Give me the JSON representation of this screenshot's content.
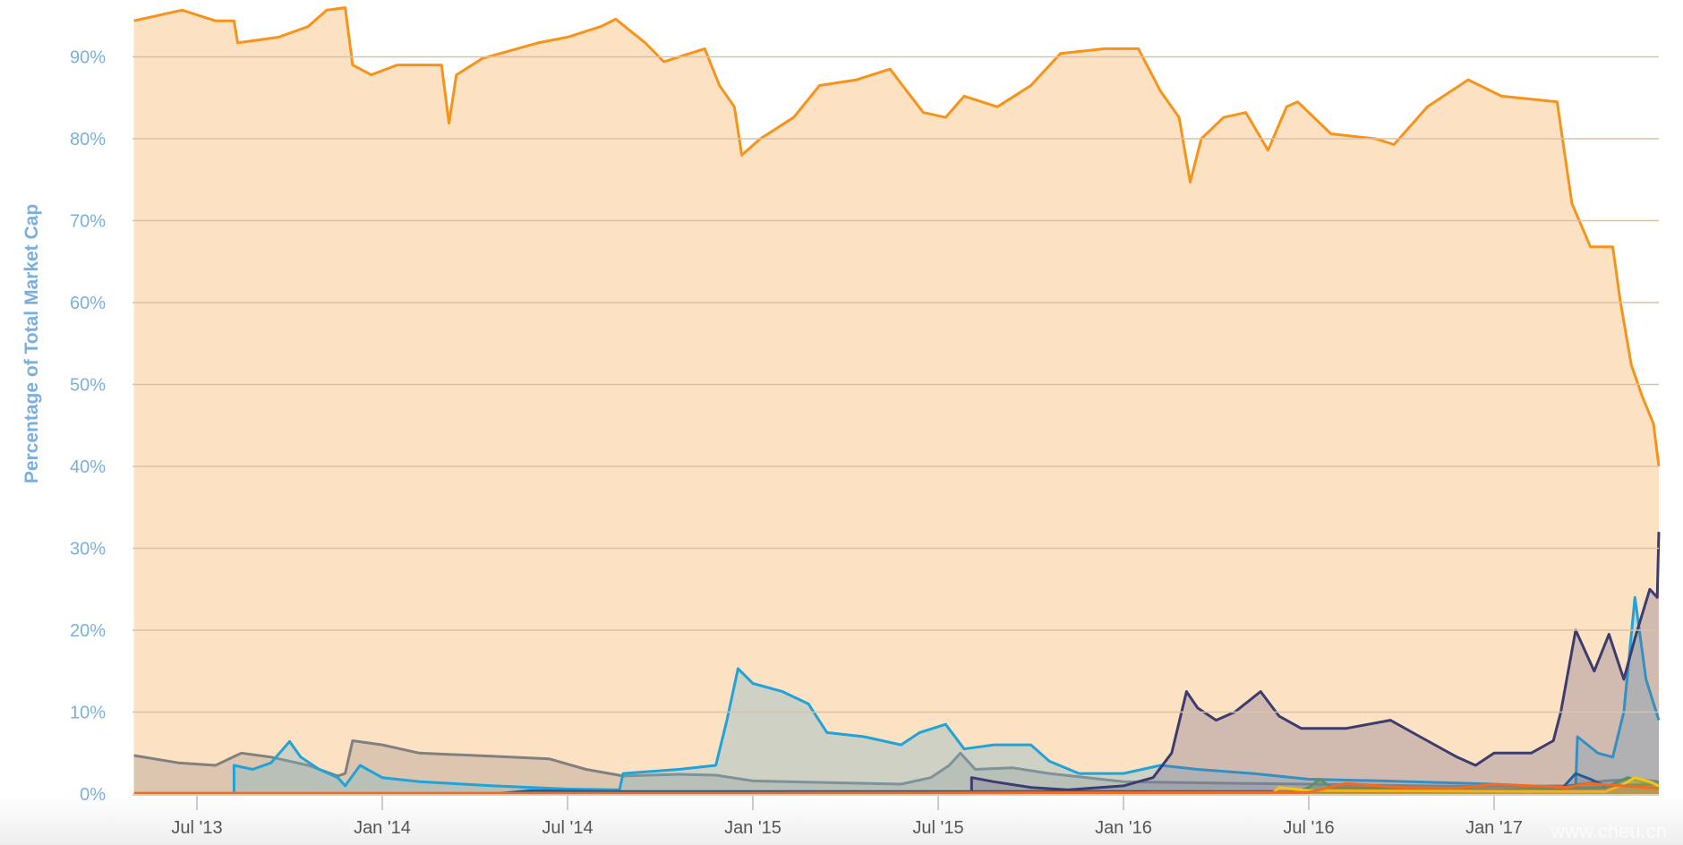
{
  "chart_data": {
    "type": "area",
    "title": "",
    "xlabel": "",
    "ylabel": "Percentage of Total Market Cap",
    "ylim": [
      0,
      100
    ],
    "xlim": [
      2013.33,
      2017.45
    ],
    "grid": true,
    "legend": "none",
    "y_ticks": [
      {
        "value": 0,
        "label": "0%"
      },
      {
        "value": 10,
        "label": "10%"
      },
      {
        "value": 20,
        "label": "20%"
      },
      {
        "value": 30,
        "label": "30%"
      },
      {
        "value": 40,
        "label": "40%"
      },
      {
        "value": 50,
        "label": "50%"
      },
      {
        "value": 60,
        "label": "60%"
      },
      {
        "value": 70,
        "label": "70%"
      },
      {
        "value": 80,
        "label": "80%"
      },
      {
        "value": 90,
        "label": "90%"
      }
    ],
    "x_ticks": [
      {
        "value": 2013.5,
        "label": "Jul '13"
      },
      {
        "value": 2014.0,
        "label": "Jan '14"
      },
      {
        "value": 2014.5,
        "label": "Jul '14"
      },
      {
        "value": 2015.0,
        "label": "Jan '15"
      },
      {
        "value": 2015.5,
        "label": "Jul '15"
      },
      {
        "value": 2016.0,
        "label": "Jan '16"
      },
      {
        "value": 2016.5,
        "label": "Jul '16"
      },
      {
        "value": 2017.0,
        "label": "Jan '17"
      }
    ],
    "series": [
      {
        "color": "#f7931a",
        "fill": "rgba(252,225,194,1)",
        "points": [
          [
            2013.33,
            94.4
          ],
          [
            2013.46,
            95.7
          ],
          [
            2013.55,
            94.4
          ],
          [
            2013.6,
            94.4
          ],
          [
            2013.61,
            91.7
          ],
          [
            2013.72,
            92.4
          ],
          [
            2013.8,
            93.7
          ],
          [
            2013.85,
            95.7
          ],
          [
            2013.9,
            96
          ],
          [
            2013.92,
            89
          ],
          [
            2013.97,
            87.8
          ],
          [
            2014.04,
            89
          ],
          [
            2014.16,
            89
          ],
          [
            2014.18,
            81.9
          ],
          [
            2014.2,
            87.8
          ],
          [
            2014.27,
            89.8
          ],
          [
            2014.42,
            91.7
          ],
          [
            2014.5,
            92.4
          ],
          [
            2014.59,
            93.7
          ],
          [
            2014.63,
            94.6
          ],
          [
            2014.71,
            91.7
          ],
          [
            2014.76,
            89.4
          ],
          [
            2014.87,
            91
          ],
          [
            2014.91,
            86.5
          ],
          [
            2014.95,
            83.9
          ],
          [
            2014.97,
            78
          ],
          [
            2015.02,
            80
          ],
          [
            2015.11,
            82.6
          ],
          [
            2015.18,
            86.5
          ],
          [
            2015.28,
            87.2
          ],
          [
            2015.37,
            88.5
          ],
          [
            2015.46,
            83.2
          ],
          [
            2015.52,
            82.6
          ],
          [
            2015.57,
            85.2
          ],
          [
            2015.66,
            83.9
          ],
          [
            2015.75,
            86.5
          ],
          [
            2015.83,
            90.4
          ],
          [
            2015.95,
            91
          ],
          [
            2016.04,
            91
          ],
          [
            2016.1,
            85.8
          ],
          [
            2016.15,
            82.6
          ],
          [
            2016.18,
            74.7
          ],
          [
            2016.21,
            80
          ],
          [
            2016.27,
            82.6
          ],
          [
            2016.33,
            83.2
          ],
          [
            2016.39,
            78.6
          ],
          [
            2016.44,
            83.9
          ],
          [
            2016.47,
            84.5
          ],
          [
            2016.56,
            80.6
          ],
          [
            2016.68,
            80
          ],
          [
            2016.73,
            79.3
          ],
          [
            2016.82,
            83.9
          ],
          [
            2016.93,
            87.2
          ],
          [
            2017.02,
            85.2
          ],
          [
            2017.17,
            84.5
          ],
          [
            2017.21,
            72.1
          ],
          [
            2017.26,
            66.8
          ],
          [
            2017.32,
            66.8
          ],
          [
            2017.34,
            60.3
          ],
          [
            2017.37,
            52.4
          ],
          [
            2017.4,
            48.5
          ],
          [
            2017.43,
            45.2
          ],
          [
            2017.45,
            40
          ]
        ]
      },
      {
        "color": "#808080",
        "fill": "rgba(160,150,140,0.35)",
        "points": [
          [
            2013.33,
            4.7
          ],
          [
            2013.45,
            3.8
          ],
          [
            2013.55,
            3.5
          ],
          [
            2013.62,
            5
          ],
          [
            2013.7,
            4.5
          ],
          [
            2013.8,
            3.5
          ],
          [
            2013.88,
            2.2
          ],
          [
            2013.9,
            2.5
          ],
          [
            2013.92,
            6.5
          ],
          [
            2014.0,
            6
          ],
          [
            2014.1,
            5
          ],
          [
            2014.3,
            4.6
          ],
          [
            2014.45,
            4.3
          ],
          [
            2014.55,
            3
          ],
          [
            2014.65,
            2.2
          ],
          [
            2014.8,
            2.4
          ],
          [
            2014.9,
            2.3
          ],
          [
            2015.0,
            1.6
          ],
          [
            2015.2,
            1.4
          ],
          [
            2015.4,
            1.2
          ],
          [
            2015.48,
            2
          ],
          [
            2015.53,
            3.5
          ],
          [
            2015.56,
            5
          ],
          [
            2015.6,
            3
          ],
          [
            2015.7,
            3.2
          ],
          [
            2015.8,
            2.5
          ],
          [
            2016.0,
            1.5
          ],
          [
            2016.3,
            1.3
          ],
          [
            2016.5,
            1.2
          ],
          [
            2016.8,
            1
          ],
          [
            2017.0,
            0.9
          ],
          [
            2017.2,
            1
          ],
          [
            2017.3,
            1.6
          ],
          [
            2017.38,
            1.8
          ],
          [
            2017.45,
            1.5
          ]
        ]
      },
      {
        "color": "#1fa3d8",
        "fill": "rgba(120,180,200,0.35)",
        "points": [
          [
            2013.6,
            0
          ],
          [
            2013.6,
            3.5
          ],
          [
            2013.65,
            3
          ],
          [
            2013.7,
            3.8
          ],
          [
            2013.75,
            6.4
          ],
          [
            2013.78,
            4.5
          ],
          [
            2013.83,
            3
          ],
          [
            2013.88,
            2
          ],
          [
            2013.9,
            1
          ],
          [
            2013.94,
            3.5
          ],
          [
            2014.0,
            2
          ],
          [
            2014.1,
            1.5
          ],
          [
            2014.3,
            1
          ],
          [
            2014.5,
            0.6
          ],
          [
            2014.64,
            0.5
          ],
          [
            2014.65,
            2.5
          ],
          [
            2014.8,
            3
          ],
          [
            2014.9,
            3.5
          ],
          [
            2014.93,
            9
          ],
          [
            2014.96,
            15.3
          ],
          [
            2015.0,
            13.5
          ],
          [
            2015.08,
            12.5
          ],
          [
            2015.15,
            11
          ],
          [
            2015.2,
            7.5
          ],
          [
            2015.3,
            7
          ],
          [
            2015.4,
            6
          ],
          [
            2015.45,
            7.5
          ],
          [
            2015.52,
            8.5
          ],
          [
            2015.57,
            5.5
          ],
          [
            2015.65,
            6
          ],
          [
            2015.75,
            6
          ],
          [
            2015.8,
            4
          ],
          [
            2015.88,
            2.5
          ],
          [
            2016.0,
            2.5
          ],
          [
            2016.1,
            3.5
          ],
          [
            2016.2,
            3
          ],
          [
            2016.35,
            2.5
          ],
          [
            2016.5,
            1.8
          ],
          [
            2016.7,
            1.6
          ],
          [
            2017.0,
            1.2
          ],
          [
            2017.15,
            0.8
          ],
          [
            2017.22,
            1
          ],
          [
            2017.225,
            7
          ],
          [
            2017.28,
            5
          ],
          [
            2017.32,
            4.5
          ],
          [
            2017.35,
            10
          ],
          [
            2017.38,
            24
          ],
          [
            2017.41,
            14
          ],
          [
            2017.45,
            9
          ]
        ]
      },
      {
        "color": "#3c3c6e",
        "fill": "rgba(110,100,140,0.3)",
        "points": [
          [
            2015.59,
            0
          ],
          [
            2015.59,
            2
          ],
          [
            2015.65,
            1.5
          ],
          [
            2015.75,
            0.8
          ],
          [
            2015.85,
            0.5
          ],
          [
            2016.0,
            1
          ],
          [
            2016.08,
            2
          ],
          [
            2016.13,
            5
          ],
          [
            2016.17,
            12.5
          ],
          [
            2016.2,
            10.5
          ],
          [
            2016.25,
            9
          ],
          [
            2016.3,
            10
          ],
          [
            2016.37,
            12.5
          ],
          [
            2016.42,
            9.5
          ],
          [
            2016.48,
            8
          ],
          [
            2016.6,
            8
          ],
          [
            2016.72,
            9
          ],
          [
            2016.8,
            7
          ],
          [
            2016.9,
            4.5
          ],
          [
            2016.95,
            3.5
          ],
          [
            2017.0,
            5
          ],
          [
            2017.1,
            5
          ],
          [
            2017.16,
            6.5
          ],
          [
            2017.18,
            10
          ],
          [
            2017.22,
            20
          ],
          [
            2017.27,
            15
          ],
          [
            2017.31,
            19.5
          ],
          [
            2017.35,
            14
          ],
          [
            2017.38,
            19
          ],
          [
            2017.42,
            25
          ],
          [
            2017.44,
            24
          ],
          [
            2017.45,
            32
          ]
        ]
      },
      {
        "color": "#1f5f99",
        "fill": "rgba(40,90,140,0.2)",
        "points": [
          [
            2014.3,
            0
          ],
          [
            2014.4,
            0.4
          ],
          [
            2014.6,
            0.3
          ],
          [
            2015.0,
            0.3
          ],
          [
            2015.5,
            0.3
          ],
          [
            2016.0,
            0.3
          ],
          [
            2016.5,
            0.3
          ],
          [
            2017.0,
            0.3
          ],
          [
            2017.18,
            0.5
          ],
          [
            2017.22,
            2.5
          ],
          [
            2017.26,
            1.8
          ],
          [
            2017.3,
            1
          ],
          [
            2017.45,
            1.2
          ]
        ]
      },
      {
        "color": "#5a8f6a",
        "fill": "rgba(90,143,106,0.4)",
        "points": [
          [
            2016.45,
            0
          ],
          [
            2016.5,
            0.8
          ],
          [
            2016.53,
            1.8
          ],
          [
            2016.56,
            0.8
          ],
          [
            2017.0,
            0.5
          ],
          [
            2017.3,
            0.8
          ],
          [
            2017.36,
            2
          ],
          [
            2017.4,
            1.5
          ],
          [
            2017.45,
            1.2
          ]
        ]
      },
      {
        "color": "#f5c518",
        "fill": "rgba(245,197,24,0.4)",
        "points": [
          [
            2016.4,
            0
          ],
          [
            2016.42,
            0.8
          ],
          [
            2016.5,
            0.4
          ],
          [
            2017.3,
            0.3
          ],
          [
            2017.34,
            1
          ],
          [
            2017.38,
            2
          ],
          [
            2017.42,
            1.5
          ],
          [
            2017.45,
            1
          ]
        ]
      },
      {
        "color": "#f26b21",
        "fill": "rgba(242,107,33,0.2)",
        "points": [
          [
            2013.33,
            0.1
          ],
          [
            2015.0,
            0.1
          ],
          [
            2016.5,
            0.2
          ],
          [
            2016.6,
            1.3
          ],
          [
            2016.75,
            0.8
          ],
          [
            2016.9,
            0.7
          ],
          [
            2017.0,
            1.2
          ],
          [
            2017.2,
            0.8
          ],
          [
            2017.25,
            1.3
          ],
          [
            2017.45,
            0.7
          ]
        ]
      }
    ]
  },
  "watermark": "www.cheu.cn"
}
